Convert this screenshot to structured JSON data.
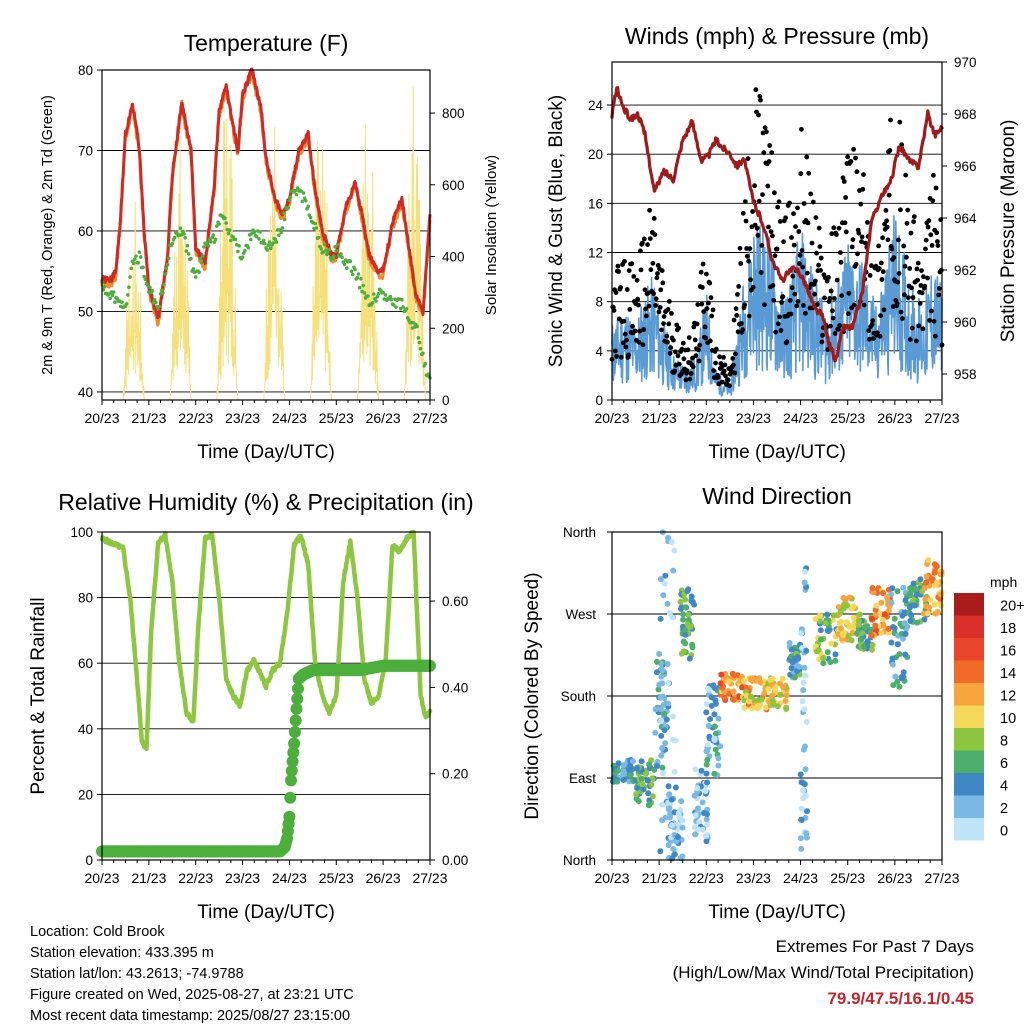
{
  "days": [
    "20/23",
    "21/23",
    "22/23",
    "23/23",
    "24/23",
    "25/23",
    "26/23",
    "27/23"
  ],
  "info": {
    "location": "Location: Cold Brook",
    "elevation": "Station elevation: 433.395 m",
    "latlon": "Station lat/lon: 43.2613; -74.9788",
    "created": "Figure created on Wed, 2025-08-27, at 23:21 UTC",
    "recent": "Most recent data timestamp: 2025/08/27 23:15:00"
  },
  "extremes": {
    "title": "Extremes For Past 7 Days",
    "subtitle": "(High/Low/Max Wind/Total Precipitation)",
    "values": "79.9/47.5/16.1/0.45"
  },
  "colors": {
    "temp2m": "#d02a24",
    "temp9m": "#f08a2a",
    "dewpoint": "#4caf3c",
    "solar": "#f7e07a",
    "gust": "#000000",
    "wind": "#5b9bd5",
    "pressure": "#a01a1a",
    "rh": "#8dc63f",
    "precip": "#4caf3c"
  },
  "chart_data": [
    {
      "type": "line",
      "title": "Temperature (F)",
      "xlabel": "Time (Day/UTC)",
      "ylabel": "2m & 9m T (Red, Orange) & 2m Td (Green)",
      "y2label": "Solar Insolation (Yellow)",
      "ylim": [
        39,
        80
      ],
      "y2lim": [
        0,
        920
      ],
      "yticks": [
        40,
        50,
        60,
        70,
        80
      ],
      "y2ticks": [
        0,
        200,
        400,
        600,
        800
      ],
      "grid": true,
      "series": [
        {
          "key": "t2m",
          "x": [
            0,
            0.2,
            0.3,
            0.4,
            0.5,
            0.65,
            0.8,
            0.9,
            1.0,
            1.2,
            1.4,
            1.5,
            1.7,
            1.9,
            2.0,
            2.2,
            2.4,
            2.5,
            2.65,
            2.8,
            2.9,
            3.0,
            3.2,
            3.4,
            3.5,
            3.7,
            3.85,
            4.0,
            4.2,
            4.4,
            4.55,
            4.7,
            4.9,
            5.0,
            5.2,
            5.4,
            5.55,
            5.7,
            5.9,
            6.0,
            6.2,
            6.4,
            6.55,
            6.7,
            6.85,
            7.0
          ],
          "y": [
            54,
            54,
            55,
            62,
            72,
            76,
            70,
            60,
            53,
            49,
            57,
            67,
            76,
            70,
            58,
            56,
            66,
            75,
            78,
            73,
            70,
            77,
            80,
            75,
            69,
            64,
            62,
            64,
            70,
            72,
            65,
            60,
            57,
            57,
            63,
            66,
            62,
            57,
            55,
            55,
            61,
            64,
            58,
            52,
            50,
            62
          ]
        },
        {
          "key": "td",
          "x": [
            0,
            0.2,
            0.4,
            0.5,
            0.6,
            0.8,
            1.0,
            1.2,
            1.4,
            1.5,
            1.7,
            1.9,
            2.0,
            2.2,
            2.4,
            2.55,
            2.7,
            2.9,
            3.0,
            3.2,
            3.4,
            3.6,
            3.8,
            4.0,
            4.2,
            4.4,
            4.5,
            4.7,
            4.9,
            5.0,
            5.2,
            5.4,
            5.55,
            5.7,
            5.9,
            6.0,
            6.2,
            6.4,
            6.55,
            6.7,
            6.8,
            6.9,
            7.0
          ],
          "y": [
            53,
            52,
            51,
            50,
            55,
            57,
            53,
            50,
            56,
            59,
            60,
            56,
            54,
            58,
            59,
            62,
            60,
            58,
            56,
            60,
            59,
            58,
            60,
            64,
            65,
            63,
            61,
            58,
            57,
            58,
            56,
            55,
            53,
            51,
            52,
            52,
            51,
            51,
            49,
            48,
            46,
            43,
            42
          ]
        }
      ],
      "solar_days": [
        0,
        1,
        2,
        3,
        4,
        5,
        6
      ],
      "solar_peaks": [
        580,
        760,
        920,
        950,
        850,
        900,
        920
      ]
    },
    {
      "type": "line",
      "title": "Winds (mph) & Pressure (mb)",
      "xlabel": "Time (Day/UTC)",
      "ylabel": "Sonic Wind & Gust (Blue, Black)",
      "y2label": "Station Pressure (Maroon)",
      "ylim": [
        0,
        27.5
      ],
      "y2lim": [
        957,
        970
      ],
      "yticks": [
        0,
        4,
        8,
        12,
        16,
        20,
        24
      ],
      "y2ticks": [
        958,
        960,
        962,
        964,
        966,
        968,
        970
      ],
      "grid": true,
      "series": [
        {
          "key": "gust_env",
          "x": [
            0,
            0.3,
            0.5,
            0.7,
            0.9,
            1.0,
            1.3,
            1.6,
            1.8,
            2.0,
            2.2,
            2.5,
            2.8,
            3.0,
            3.3,
            3.6,
            3.8,
            4.0,
            4.3,
            4.5,
            4.8,
            5.0,
            5.3,
            5.6,
            5.8,
            6.0,
            6.3,
            6.6,
            6.8,
            7.0
          ],
          "y": [
            9,
            10,
            9,
            12,
            14,
            10,
            6,
            4,
            6,
            12,
            4,
            2,
            14,
            22,
            20,
            12,
            14,
            19,
            14,
            10,
            13,
            18,
            16,
            10,
            16,
            22,
            14,
            10,
            16,
            12
          ]
        },
        {
          "key": "wind_env",
          "x": [
            0,
            0.3,
            0.5,
            0.7,
            0.9,
            1.0,
            1.3,
            1.6,
            1.8,
            2.0,
            2.2,
            2.5,
            2.8,
            3.0,
            3.3,
            3.6,
            3.8,
            4.0,
            4.3,
            4.5,
            4.8,
            5.0,
            5.3,
            5.6,
            5.8,
            6.0,
            6.3,
            6.6,
            6.8,
            7.0
          ],
          "y": [
            5,
            6,
            5,
            7,
            8,
            6,
            3,
            2,
            3,
            7,
            2,
            1,
            8,
            12,
            11,
            7,
            8,
            11,
            8,
            6,
            8,
            10,
            9,
            6,
            9,
            12,
            8,
            6,
            9,
            7
          ]
        },
        {
          "key": "pressure",
          "x": [
            0,
            0.1,
            0.25,
            0.4,
            0.55,
            0.7,
            0.9,
            1.1,
            1.3,
            1.5,
            1.7,
            1.9,
            2.05,
            2.2,
            2.35,
            2.5,
            2.65,
            2.8,
            3.0,
            3.2,
            3.4,
            3.6,
            3.8,
            3.95,
            4.1,
            4.3,
            4.45,
            4.6,
            4.75,
            4.9,
            5.1,
            5.3,
            5.5,
            5.7,
            5.9,
            6.1,
            6.3,
            6.5,
            6.7,
            6.85,
            7.0
          ],
          "y": [
            968,
            969,
            968.2,
            967.8,
            968,
            967.2,
            965,
            965.8,
            965.5,
            967,
            967.7,
            966.2,
            966.4,
            967,
            966.7,
            966.5,
            966,
            966.3,
            964.6,
            963.8,
            962.4,
            961.6,
            962,
            962,
            961.5,
            960.5,
            960.3,
            959.2,
            958.5,
            959.8,
            959.8,
            961,
            963.8,
            964.8,
            965.3,
            966.8,
            966.2,
            966,
            968,
            967.2,
            967.5
          ]
        }
      ]
    },
    {
      "type": "line",
      "title": "Relative Humidity (%) & Precipitation (in)",
      "xlabel": "Time (Day/UTC)",
      "ylabel": "Percent & Total Rainfall",
      "ylim": [
        0,
        100
      ],
      "y2lim": [
        0,
        0.76
      ],
      "yticks": [
        0,
        20,
        40,
        60,
        80,
        100
      ],
      "y2ticks": [
        "0.00",
        "0.20",
        "0.40",
        "0.60"
      ],
      "grid": true,
      "series": [
        {
          "key": "rh",
          "x": [
            0,
            0.15,
            0.3,
            0.45,
            0.6,
            0.75,
            0.85,
            0.95,
            1.05,
            1.2,
            1.35,
            1.5,
            1.65,
            1.8,
            1.95,
            2.05,
            2.2,
            2.35,
            2.5,
            2.65,
            2.8,
            2.95,
            3.1,
            3.25,
            3.4,
            3.5,
            3.65,
            3.8,
            3.95,
            4.1,
            4.25,
            4.4,
            4.55,
            4.7,
            4.85,
            5.0,
            5.15,
            5.3,
            5.45,
            5.6,
            5.75,
            5.9,
            6.05,
            6.2,
            6.35,
            6.5,
            6.65,
            6.8,
            6.9,
            7.0
          ],
          "y": [
            98,
            97,
            96,
            95,
            80,
            55,
            36,
            34,
            70,
            97,
            99,
            85,
            60,
            45,
            42,
            70,
            98,
            99,
            80,
            55,
            50,
            47,
            58,
            61,
            56,
            53,
            58,
            60,
            75,
            96,
            99,
            90,
            60,
            50,
            45,
            50,
            85,
            97,
            80,
            55,
            48,
            50,
            60,
            96,
            94,
            98,
            100,
            50,
            44,
            45
          ]
        },
        {
          "key": "precip",
          "x": [
            0,
            0.5,
            1,
            1.5,
            2,
            2.5,
            3,
            3.5,
            3.8,
            3.9,
            3.95,
            4.0,
            4.03,
            4.06,
            4.1,
            4.15,
            4.2,
            4.3,
            4.5,
            5,
            5.5,
            6,
            6.5,
            7.0
          ],
          "y": [
            0.02,
            0.02,
            0.02,
            0.02,
            0.02,
            0.02,
            0.02,
            0.02,
            0.02,
            0.03,
            0.05,
            0.1,
            0.18,
            0.22,
            0.27,
            0.35,
            0.42,
            0.43,
            0.44,
            0.44,
            0.44,
            0.45,
            0.45,
            0.45
          ]
        }
      ]
    },
    {
      "type": "scatter",
      "title": "Wind Direction",
      "xlabel": "Time (Day/UTC)",
      "ylabel": "Direction (Colored By Speed)",
      "yticks": [
        "North",
        "East",
        "South",
        "West",
        "North"
      ],
      "ylim": [
        0,
        360
      ],
      "grid": true,
      "legend": {
        "title": "mph",
        "labels": [
          "20+",
          "18",
          "16",
          "14",
          "12",
          "10",
          "8",
          "6",
          "4",
          "2",
          "0"
        ],
        "colors": [
          "#a81c1c",
          "#d9302a",
          "#e8452a",
          "#f06a2a",
          "#f7a43c",
          "#f4d85a",
          "#8cc63f",
          "#4caf6a",
          "#3f88c5",
          "#7ab8e5",
          "#bfe3f7"
        ]
      },
      "clusters": [
        {
          "x": [
            0.0,
            0.45
          ],
          "y": [
            85,
            110
          ],
          "speed": 4
        },
        {
          "x": [
            0.5,
            0.9
          ],
          "y": [
            60,
            110
          ],
          "speed": 6
        },
        {
          "x": [
            0.9,
            1.2
          ],
          "y": [
            100,
            220
          ],
          "speed": 4
        },
        {
          "x": [
            1.0,
            1.35
          ],
          "y": [
            0,
            360
          ],
          "speed": 1
        },
        {
          "x": [
            1.2,
            1.5
          ],
          "y": [
            0,
            80
          ],
          "speed": 2
        },
        {
          "x": [
            1.45,
            1.75
          ],
          "y": [
            220,
            300
          ],
          "speed": 6
        },
        {
          "x": [
            1.75,
            2.05
          ],
          "y": [
            20,
            100
          ],
          "speed": 2
        },
        {
          "x": [
            2.0,
            2.3
          ],
          "y": [
            90,
            200
          ],
          "speed": 3
        },
        {
          "x": [
            2.3,
            2.8
          ],
          "y": [
            175,
            205
          ],
          "speed": 13
        },
        {
          "x": [
            2.8,
            3.3
          ],
          "y": [
            165,
            200
          ],
          "speed": 11
        },
        {
          "x": [
            3.3,
            3.75
          ],
          "y": [
            165,
            200
          ],
          "speed": 10
        },
        {
          "x": [
            3.75,
            4.0
          ],
          "y": [
            200,
            240
          ],
          "speed": 5
        },
        {
          "x": [
            4.0,
            4.15
          ],
          "y": [
            0,
            340
          ],
          "speed": 2
        },
        {
          "x": [
            4.3,
            4.8
          ],
          "y": [
            210,
            270
          ],
          "speed": 7
        },
        {
          "x": [
            4.8,
            5.2
          ],
          "y": [
            240,
            290
          ],
          "speed": 10
        },
        {
          "x": [
            5.2,
            5.55
          ],
          "y": [
            230,
            270
          ],
          "speed": 6
        },
        {
          "x": [
            5.5,
            5.9
          ],
          "y": [
            245,
            300
          ],
          "speed": 13
        },
        {
          "x": [
            5.9,
            6.3
          ],
          "y": [
            190,
            300
          ],
          "speed": 4
        },
        {
          "x": [
            6.3,
            6.7
          ],
          "y": [
            260,
            310
          ],
          "speed": 6
        },
        {
          "x": [
            6.6,
            7.0
          ],
          "y": [
            270,
            330
          ],
          "speed": 12
        }
      ]
    }
  ]
}
